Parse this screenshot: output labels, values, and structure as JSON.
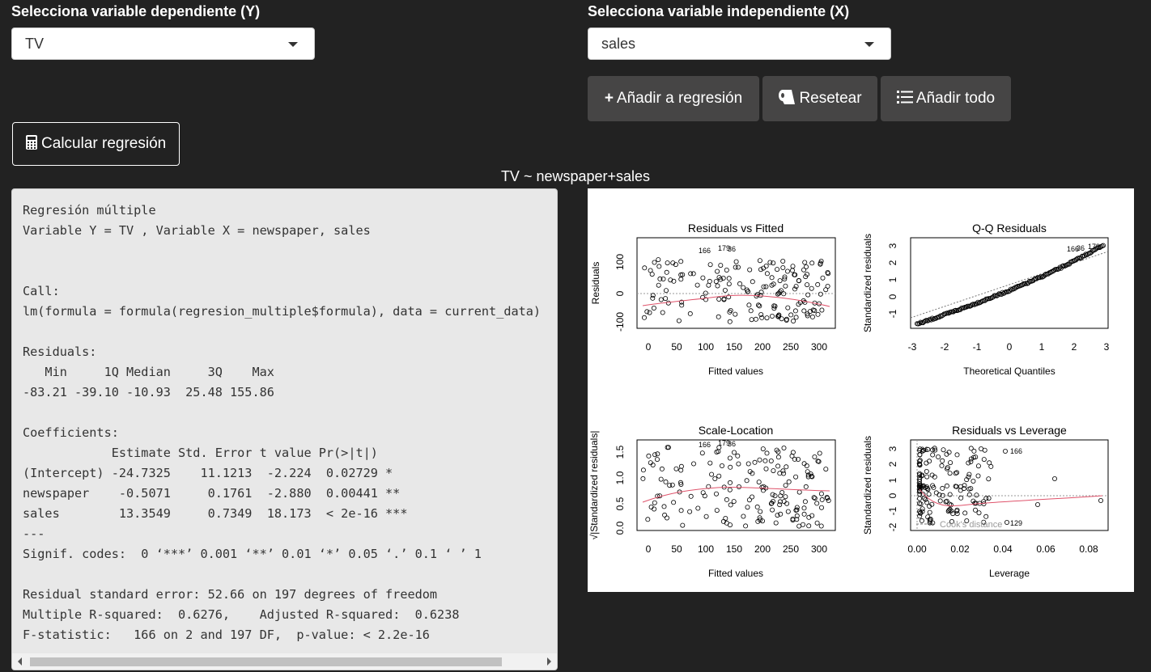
{
  "controls": {
    "y_label": "Selecciona variable dependiente (Y)",
    "y_value": "TV",
    "x_label": "Selecciona variable independiente (X)",
    "x_value": "sales",
    "add_button": "Añadir a regresión",
    "reset_button": "Resetear",
    "add_all_button": "Añadir todo",
    "calc_button": "Calcular regresión"
  },
  "formula_title": "TV ~ newspaper+sales",
  "output_text": "Regresión múltiple\nVariable Y = TV , Variable X = newspaper, sales\n\n\nCall:\nlm(formula = formula(regresion_multiple$formula), data = current_data)\n\nResiduals:\n   Min     1Q Median     3Q    Max \n-83.21 -39.10 -10.93  25.48 155.86 \n\nCoefficients:\n            Estimate Std. Error t value Pr(>|t|)    \n(Intercept) -24.7325    11.1213  -2.224  0.02729 *  \nnewspaper    -0.5071     0.1761  -2.880  0.00441 ** \nsales        13.3549     0.7349  18.173  < 2e-16 ***\n---\nSignif. codes:  0 ‘***’ 0.001 ‘**’ 0.01 ‘*’ 0.05 ‘.’ 0.1 ‘ ’ 1\n\nResidual standard error: 52.66 on 197 degrees of freedom\nMultiple R-squared:  0.6276,\tAdjusted R-squared:  0.6238 \nF-statistic:   166 on 2 and 197 DF,  p-value: < 2.2e-16",
  "icons": {
    "add": "plus-icon",
    "reset": "toilet-paper-icon",
    "add_all": "list-icon",
    "calc": "calculator-icon",
    "dropdown": "caret-down-icon"
  },
  "colors": {
    "background": "#222222",
    "button": "#464545",
    "smooth_line": "#df536b"
  },
  "plots": {
    "p1": {
      "title": "Residuals vs Fitted",
      "xlabel": "Fitted values",
      "ylabel": "Residuals",
      "xticks": [
        "0",
        "50",
        "100",
        "150",
        "200",
        "250",
        "300"
      ],
      "yticks": [
        "-100",
        "0",
        "100"
      ],
      "ann": [
        "166",
        "179",
        "36"
      ]
    },
    "p2": {
      "title": "Q-Q Residuals",
      "xlabel": "Theoretical Quantiles",
      "ylabel": "Standardized residuals",
      "xticks": [
        "-3",
        "-2",
        "-1",
        "0",
        "1",
        "2",
        "3"
      ],
      "yticks": [
        "-1",
        "0",
        "1",
        "2",
        "3"
      ],
      "ann": [
        "166",
        "36",
        "179"
      ]
    },
    "p3": {
      "title": "Scale-Location",
      "xlabel": "Fitted values",
      "ylabel": "√|Standardized residuals|",
      "xticks": [
        "0",
        "50",
        "100",
        "150",
        "200",
        "250",
        "300"
      ],
      "yticks": [
        "0.0",
        "0.5",
        "1.0",
        "1.5"
      ],
      "ann": [
        "166",
        "179",
        "36"
      ]
    },
    "p4": {
      "title": "Residuals vs Leverage",
      "xlabel": "Leverage",
      "ylabel": "Standardized residuals",
      "xticks": [
        "0.00",
        "0.02",
        "0.04",
        "0.06",
        "0.08"
      ],
      "yticks": [
        "-2",
        "-1",
        "0",
        "1",
        "2",
        "3"
      ],
      "ann": [
        "36",
        "166",
        "129"
      ],
      "cooks": "Cook's distance"
    }
  }
}
